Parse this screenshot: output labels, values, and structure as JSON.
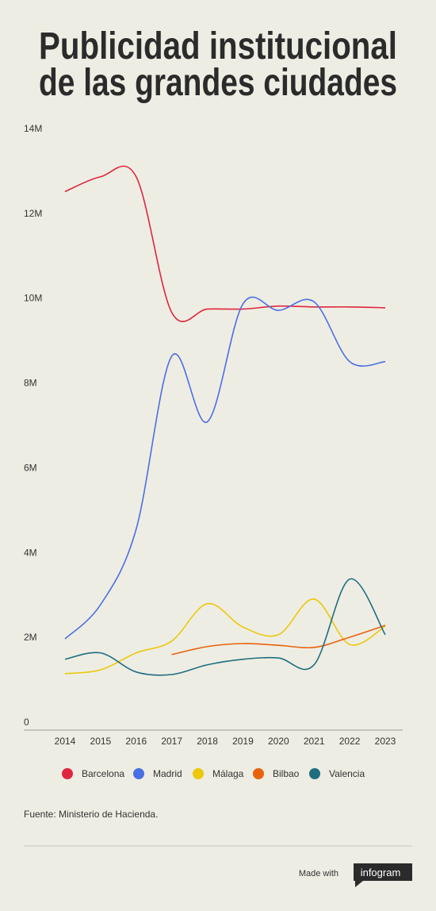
{
  "chart_data": {
    "type": "line",
    "title": [
      "Publicidad institucional",
      "de las grandes ciudades"
    ],
    "categories": [
      "2014",
      "2015",
      "2016",
      "2017",
      "2018",
      "2019",
      "2020",
      "2021",
      "2022",
      "2023"
    ],
    "series": [
      {
        "name": "Barcelona",
        "color": "#e0263f",
        "values": [
          12700000.0,
          13050000.0,
          13050000.0,
          9850000.0,
          9930000.0,
          9930000.0,
          10000000.0,
          9980000.0,
          9980000.0,
          9960000.0
        ]
      },
      {
        "name": "Madrid",
        "color": "#4a6fe3",
        "values": [
          2150000.0,
          2960000.0,
          4740000.0,
          8820000.0,
          7270000.0,
          10050000.0,
          9900000.0,
          10100000.0,
          8690000.0,
          8690000.0
        ]
      },
      {
        "name": "Málaga",
        "color": "#ebc80b",
        "values": [
          1330000.0,
          1420000.0,
          1820000.0,
          2100000.0,
          2980000.0,
          2430000.0,
          2250000.0,
          3090000.0,
          2020000.0,
          2450000.0
        ]
      },
      {
        "name": "Bilbao",
        "color": "#e8620d",
        "values": [
          null,
          null,
          null,
          1780000.0,
          1970000.0,
          2040000.0,
          2000000.0,
          1950000.0,
          2190000.0,
          2470000.0
        ]
      },
      {
        "name": "Valencia",
        "color": "#1e6e80",
        "values": [
          1670000.0,
          1820000.0,
          1370000.0,
          1310000.0,
          1540000.0,
          1670000.0,
          1700000.0,
          1540000.0,
          3560000.0,
          2250000.0
        ]
      }
    ],
    "ylim": [
      0,
      14000000
    ],
    "yticks": [
      0,
      {
        "value": 2000000,
        "label": "2M"
      },
      {
        "value": 4000000,
        "label": "4M"
      },
      {
        "value": 6000000,
        "label": "6M"
      },
      {
        "value": 8000000,
        "label": "8M"
      },
      {
        "value": 10000000,
        "label": "10M"
      },
      {
        "value": 12000000,
        "label": "12M"
      },
      {
        "value": 14000000,
        "label": "14M"
      }
    ],
    "grid": false,
    "source": "Fuente: Ministerio de Hacienda.",
    "credit": "Made with",
    "brand": "infogram"
  }
}
